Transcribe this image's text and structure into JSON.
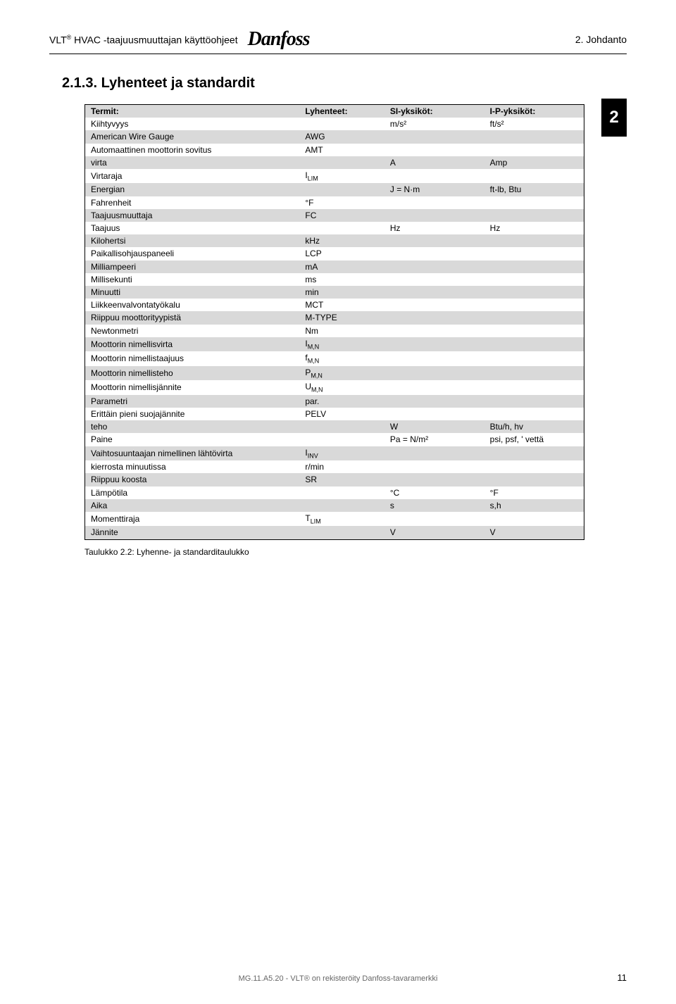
{
  "header": {
    "product_prefix": "VLT",
    "product_sup": "®",
    "product_suffix": " HVAC -taajuusmuuttajan käyttöohjeet",
    "logo_text": "Danfoss",
    "right_text": "2. Johdanto"
  },
  "section": {
    "number": "2.1.3.",
    "title": "Lyhenteet ja standardit"
  },
  "chapter_tab": "2",
  "table": {
    "headers": {
      "term": "Termit:",
      "abbr": "Lyhenteet:",
      "si": "SI-yksiköt:",
      "ip": "I-P-yksiköt:"
    },
    "header_shade": true,
    "rows": [
      {
        "term": "Kiihtyvyys",
        "abbr": "",
        "si": "m/s²",
        "ip": "ft/s²",
        "shade": false
      },
      {
        "term": "American Wire Gauge",
        "abbr": "AWG",
        "si": "",
        "ip": "",
        "shade": true
      },
      {
        "term": "Automaattinen moottorin sovitus",
        "abbr": "AMT",
        "si": "",
        "ip": "",
        "shade": false
      },
      {
        "term": "virta",
        "abbr": "",
        "si": "A",
        "ip": "Amp",
        "shade": true
      },
      {
        "term": "Virtaraja",
        "abbr": "I",
        "abbr_sub": "LIM",
        "si": "",
        "ip": "",
        "shade": false
      },
      {
        "term": "Energian",
        "abbr": "",
        "si": "J = N·m",
        "ip": "ft-lb, Btu",
        "shade": true
      },
      {
        "term": "Fahrenheit",
        "abbr": "°F",
        "si": "",
        "ip": "",
        "shade": false
      },
      {
        "term": "Taajuusmuuttaja",
        "abbr": "FC",
        "si": "",
        "ip": "",
        "shade": true
      },
      {
        "term": "Taajuus",
        "abbr": "",
        "si": "Hz",
        "ip": "Hz",
        "shade": false
      },
      {
        "term": "Kilohertsi",
        "abbr": "kHz",
        "si": "",
        "ip": "",
        "shade": true
      },
      {
        "term": "Paikallisohjauspaneeli",
        "abbr": "LCP",
        "si": "",
        "ip": "",
        "shade": false
      },
      {
        "term": "Milliampeeri",
        "abbr": "mA",
        "si": "",
        "ip": "",
        "shade": true
      },
      {
        "term": "Millisekunti",
        "abbr": "ms",
        "si": "",
        "ip": "",
        "shade": false
      },
      {
        "term": "Minuutti",
        "abbr": "min",
        "si": "",
        "ip": "",
        "shade": true
      },
      {
        "term": "Liikkeenvalvontatyökalu",
        "abbr": "MCT",
        "si": "",
        "ip": "",
        "shade": false
      },
      {
        "term": "Riippuu moottorityypistä",
        "abbr": "M-TYPE",
        "si": "",
        "ip": "",
        "shade": true
      },
      {
        "term": "Newtonmetri",
        "abbr": "Nm",
        "si": "",
        "ip": "",
        "shade": false
      },
      {
        "term": "Moottorin nimellisvirta",
        "abbr": "I",
        "abbr_sub": "M,N",
        "si": "",
        "ip": "",
        "shade": true
      },
      {
        "term": "Moottorin nimellistaajuus",
        "abbr": "f",
        "abbr_sub": "M,N",
        "si": "",
        "ip": "",
        "shade": false
      },
      {
        "term": "Moottorin nimellisteho",
        "abbr": "P",
        "abbr_sub": "M,N",
        "si": "",
        "ip": "",
        "shade": true
      },
      {
        "term": "Moottorin nimellisjännite",
        "abbr": "U",
        "abbr_sub": "M,N",
        "si": "",
        "ip": "",
        "shade": false
      },
      {
        "term": "Parametri",
        "abbr": "par.",
        "si": "",
        "ip": "",
        "shade": true
      },
      {
        "term": "Erittäin pieni suojajännite",
        "abbr": "PELV",
        "si": "",
        "ip": "",
        "shade": false
      },
      {
        "term": "teho",
        "abbr": "",
        "si": "W",
        "ip": "Btu/h, hv",
        "shade": true
      },
      {
        "term": "Paine",
        "abbr": "",
        "si": "Pa = N/m²",
        "ip": "psi, psf, ' vettä",
        "shade": false
      },
      {
        "term": "Vaihtosuuntaajan nimellinen lähtövirta",
        "abbr": "I",
        "abbr_sub": "INV",
        "si": "",
        "ip": "",
        "shade": true
      },
      {
        "term": "kierrosta minuutissa",
        "abbr": "r/min",
        "si": "",
        "ip": "",
        "shade": false
      },
      {
        "term": "Riippuu koosta",
        "abbr": "SR",
        "si": "",
        "ip": "",
        "shade": true
      },
      {
        "term": "Lämpötila",
        "abbr": "",
        "si": "°C",
        "ip": "°F",
        "shade": false
      },
      {
        "term": "Aika",
        "abbr": "",
        "si": "s",
        "ip": "s,h",
        "shade": true
      },
      {
        "term": "Momenttiraja",
        "abbr": "T",
        "abbr_sub": "LIM",
        "si": "",
        "ip": "",
        "shade": false
      },
      {
        "term": "Jännite",
        "abbr": "",
        "si": "V",
        "ip": "V",
        "shade": true
      }
    ]
  },
  "caption": "Taulukko 2.2: Lyhenne- ja standarditaulukko",
  "footer": {
    "center": "MG.11.A5.20 - VLT® on rekisteröity Danfoss-tavaramerkki",
    "page_number": "11"
  },
  "colors": {
    "shade_row": "#d9d9d9",
    "text": "#000000",
    "footer_text": "#666666",
    "background": "#ffffff"
  }
}
